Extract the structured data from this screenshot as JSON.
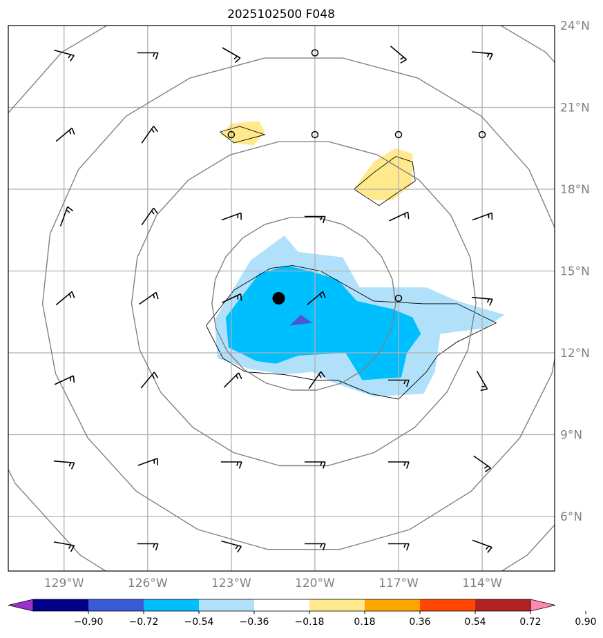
{
  "title": "2025102500 F048",
  "colors": {
    "ring": "#808080",
    "grid": "#b0b0b0",
    "neg_fill_1": "#b0e0fa",
    "neg_fill_2": "#00bfff",
    "neg_fill_3": "#4b55d8",
    "pos_fill_1": "#ffe98c"
  },
  "chart_data": {
    "type": "map",
    "title": "2025102500 F048",
    "lon_range": [
      -131,
      -111.4
    ],
    "lat_range": [
      4,
      24
    ],
    "x_tick_labels": [
      "129°W",
      "126°W",
      "123°W",
      "120°W",
      "117°W",
      "114°W"
    ],
    "x_ticks": [
      -129,
      -126,
      -123,
      -120,
      -117,
      -114
    ],
    "y_tick_labels": [
      "6°N",
      "9°N",
      "12°N",
      "15°N",
      "18°N",
      "21°N",
      "24°N"
    ],
    "y_ticks": [
      6,
      9,
      12,
      15,
      18,
      21,
      24
    ],
    "grid": true,
    "center_marker": {
      "lon": -121.3,
      "lat": 14.0
    },
    "colorbar": {
      "levels": [
        -0.9,
        -0.72,
        -0.54,
        -0.36,
        -0.18,
        0.18,
        0.36,
        0.54,
        0.72,
        0.9
      ],
      "tick_labels": [
        "−0.90",
        "−0.72",
        "−0.54",
        "−0.36",
        "−0.18",
        "0.18",
        "0.36",
        "0.54",
        "0.72",
        "0.90"
      ],
      "colors": [
        "#9932cc",
        "#00008b",
        "#3a5bd6",
        "#00bfff",
        "#b0e0fa",
        "#ffffff",
        "#ffe98c",
        "#ffa500",
        "#ff4500",
        "#b22222",
        "#ff88b0"
      ],
      "extend": "both"
    },
    "range_rings_lon_lat": {
      "center": {
        "lon": -120.4,
        "lat": 13.8
      },
      "radii_deg": [
        3.2,
        6.0,
        9.1,
        12.2
      ]
    },
    "filled_regions": [
      {
        "level": "-0.36 to -0.18",
        "color": "#b0e0fa",
        "polygon": [
          [
            -121.1,
            16.3
          ],
          [
            -120.6,
            15.7
          ],
          [
            -119.0,
            15.5
          ],
          [
            -118.4,
            14.4
          ],
          [
            -116.0,
            14.4
          ],
          [
            -114.9,
            13.9
          ],
          [
            -113.2,
            13.4
          ],
          [
            -113.9,
            12.9
          ],
          [
            -115.5,
            12.7
          ],
          [
            -115.7,
            11.3
          ],
          [
            -116.1,
            10.5
          ],
          [
            -117.9,
            10.4
          ],
          [
            -119.3,
            10.9
          ],
          [
            -120.1,
            11.3
          ],
          [
            -121.1,
            11.2
          ],
          [
            -122.3,
            11.4
          ],
          [
            -123.5,
            11.8
          ],
          [
            -123.6,
            13.2
          ],
          [
            -122.3,
            15.4
          ]
        ]
      },
      {
        "level": "-0.54 to -0.36",
        "color": "#00bfff",
        "polygon": [
          [
            -121.0,
            15.2
          ],
          [
            -120.2,
            15.0
          ],
          [
            -119.2,
            14.7
          ],
          [
            -118.5,
            13.9
          ],
          [
            -117.2,
            13.6
          ],
          [
            -116.5,
            13.3
          ],
          [
            -116.2,
            12.7
          ],
          [
            -116.7,
            12.0
          ],
          [
            -116.9,
            11.1
          ],
          [
            -118.3,
            11.0
          ],
          [
            -118.9,
            12.0
          ],
          [
            -120.6,
            11.9
          ],
          [
            -121.4,
            11.6
          ],
          [
            -122.1,
            11.7
          ],
          [
            -123.1,
            12.2
          ],
          [
            -123.2,
            13.3
          ],
          [
            -122.0,
            14.9
          ]
        ]
      },
      {
        "level": "-0.72 to -0.54",
        "color": "#4b55d8",
        "polygon": [
          [
            -120.5,
            13.4
          ],
          [
            -120.1,
            13.1
          ],
          [
            -120.9,
            13.0
          ]
        ]
      },
      {
        "level": "0.18 to 0.36",
        "color": "#ffe98c",
        "polygon": [
          [
            -123.0,
            20.4
          ],
          [
            -122.0,
            20.5
          ],
          [
            -121.8,
            20.1
          ],
          [
            -122.2,
            19.6
          ],
          [
            -122.9,
            19.7
          ],
          [
            -123.4,
            20.0
          ]
        ]
      },
      {
        "level": "0.18 to 0.36",
        "color": "#ffe98c",
        "polygon": [
          [
            -117.9,
            19.0
          ],
          [
            -117.1,
            19.5
          ],
          [
            -116.5,
            19.3
          ],
          [
            -116.5,
            18.2
          ],
          [
            -117.2,
            17.6
          ],
          [
            -117.9,
            17.6
          ],
          [
            -118.6,
            18.0
          ]
        ]
      }
    ],
    "wind_barbs_note": "Wind barbs plotted on a 3° lon × 3° lat grid; circles indicate calm."
  }
}
